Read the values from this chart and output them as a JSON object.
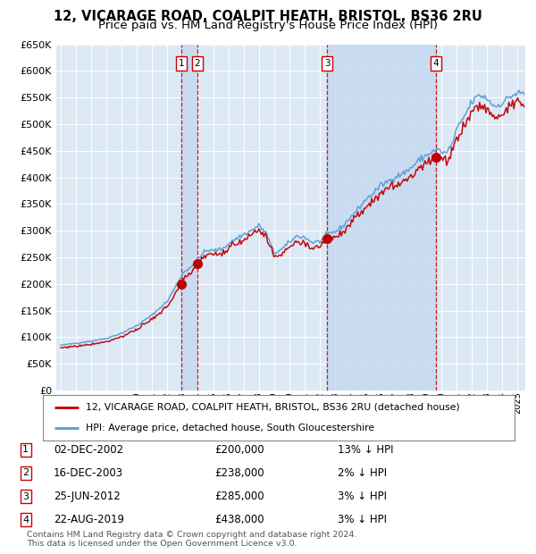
{
  "title1": "12, VICARAGE ROAD, COALPIT HEATH, BRISTOL, BS36 2RU",
  "title2": "Price paid vs. HM Land Registry's House Price Index (HPI)",
  "legend_line1": "12, VICARAGE ROAD, COALPIT HEATH, BRISTOL, BS36 2RU (detached house)",
  "legend_line2": "HPI: Average price, detached house, South Gloucestershire",
  "footer1": "Contains HM Land Registry data © Crown copyright and database right 2024.",
  "footer2": "This data is licensed under the Open Government Licence v3.0.",
  "transactions": [
    {
      "num": 1,
      "date": "02-DEC-2002",
      "price": 200000,
      "pct": "13%",
      "x_decimal": 2002.917
    },
    {
      "num": 2,
      "date": "16-DEC-2003",
      "price": 238000,
      "pct": "2%",
      "x_decimal": 2003.958
    },
    {
      "num": 3,
      "date": "25-JUN-2012",
      "price": 285000,
      "pct": "3%",
      "x_decimal": 2012.479
    },
    {
      "num": 4,
      "date": "22-AUG-2019",
      "price": 438000,
      "pct": "3%",
      "x_decimal": 2019.644
    }
  ],
  "ylim": [
    0,
    650000
  ],
  "yticks": [
    0,
    50000,
    100000,
    150000,
    200000,
    250000,
    300000,
    350000,
    400000,
    450000,
    500000,
    550000,
    600000,
    650000
  ],
  "xlim_start": 1994.7,
  "xlim_end": 2025.5,
  "background_color": "#ffffff",
  "plot_bg_color": "#dce9f5",
  "grid_color": "#ffffff",
  "hpi_color": "#5b9bd5",
  "price_color": "#c00000",
  "shade_color": "#c5d9f1",
  "dashed_color": "#cc0000",
  "marker_color": "#c00000",
  "title_fontsize": 10.5,
  "subtitle_fontsize": 9.5
}
